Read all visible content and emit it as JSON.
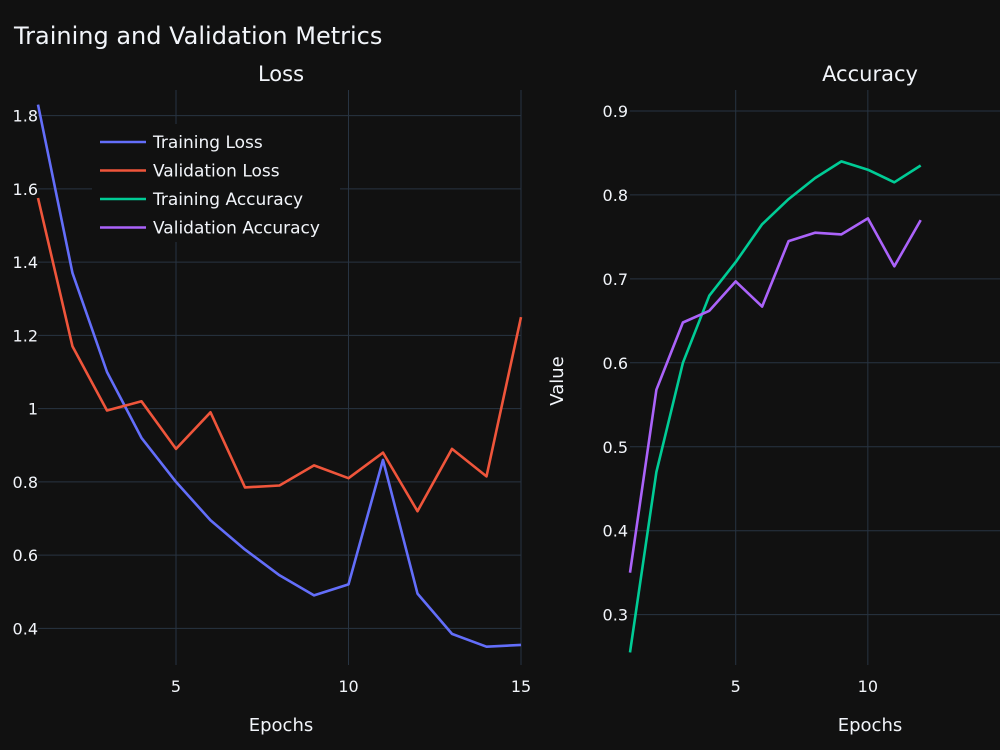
{
  "chart_data": {
    "title": "Training and Validation Metrics",
    "panels": [
      {
        "type": "line",
        "title": "Loss",
        "xlabel": "Epochs",
        "ylabel": "",
        "xlim": [
          1,
          15
        ],
        "ylim": [
          0.3,
          1.87
        ],
        "xticks": [
          5,
          10,
          15
        ],
        "yticks": [
          0.4,
          0.6,
          0.8,
          1,
          1.2,
          1.4,
          1.6,
          1.8
        ],
        "ytick_labels": [
          "0.4",
          "0.6",
          "0.8",
          "1",
          "1.2",
          "1.4",
          "1.6",
          "1.8"
        ],
        "series": [
          {
            "name": "Training Loss",
            "color": "#636efa",
            "x": [
              1,
              2,
              3,
              4,
              5,
              6,
              7,
              8,
              9,
              10,
              11,
              12,
              13,
              14,
              15
            ],
            "values": [
              1.83,
              1.37,
              1.1,
              0.92,
              0.8,
              0.695,
              0.615,
              0.545,
              0.49,
              0.52,
              0.86,
              0.495,
              0.385,
              0.35,
              0.355
            ]
          },
          {
            "name": "Validation Loss",
            "color": "#ef553b",
            "x": [
              1,
              2,
              3,
              4,
              5,
              6,
              7,
              8,
              9,
              10,
              11,
              12,
              13,
              14,
              15
            ],
            "values": [
              1.575,
              1.17,
              0.995,
              1.02,
              0.89,
              0.99,
              0.785,
              0.79,
              0.845,
              0.81,
              0.88,
              0.72,
              0.89,
              0.815,
              1.25
            ]
          }
        ]
      },
      {
        "type": "line",
        "title": "Accuracy",
        "xlabel": "Epochs",
        "ylabel": "Value",
        "xlim": [
          1,
          15
        ],
        "ylim": [
          0.24,
          0.925
        ],
        "xticks": [
          5,
          10
        ],
        "yticks": [
          0.3,
          0.4,
          0.5,
          0.6,
          0.7,
          0.8,
          0.9
        ],
        "ytick_labels": [
          "0.3",
          "0.4",
          "0.5",
          "0.6",
          "0.7",
          "0.8",
          "0.9"
        ],
        "series": [
          {
            "name": "Training Accuracy",
            "color": "#00cc96",
            "x": [
              1,
              2,
              3,
              4,
              5,
              6,
              7,
              8,
              9,
              10,
              11,
              12
            ],
            "values": [
              0.255,
              0.47,
              0.6,
              0.68,
              0.72,
              0.765,
              0.795,
              0.82,
              0.84,
              0.83,
              0.815,
              0.835
            ]
          },
          {
            "name": "Validation Accuracy",
            "color": "#ab63fa",
            "x": [
              1,
              2,
              3,
              4,
              5,
              6,
              7,
              8,
              9,
              10,
              11,
              12
            ],
            "values": [
              0.35,
              0.568,
              0.648,
              0.662,
              0.697,
              0.667,
              0.745,
              0.755,
              0.753,
              0.772,
              0.715,
              0.77
            ]
          }
        ]
      }
    ],
    "legend": [
      "Training Loss",
      "Validation Loss",
      "Training Accuracy",
      "Validation Accuracy"
    ],
    "legend_position": "top-right of loss panel",
    "grid": true
  },
  "colors": {
    "background": "#111111",
    "grid": "#283442",
    "text": "#f2f5fa"
  }
}
